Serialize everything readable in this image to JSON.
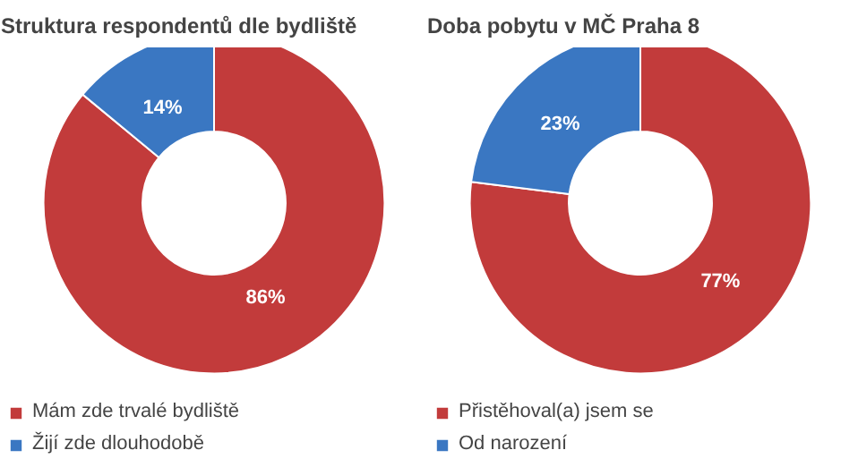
{
  "chart_data": [
    {
      "type": "donut",
      "title": "Struktura respondentů dle bydliště",
      "categories": [
        "Mám zde trvalé bydliště",
        "Žijí zde dlouhodobě"
      ],
      "values": [
        86,
        14
      ],
      "colors": [
        "#c23b3b",
        "#3a77c2"
      ],
      "value_labels": [
        "86%",
        "14%"
      ],
      "legend": "bottom"
    },
    {
      "type": "donut",
      "title": "Doba pobytu v MČ Praha 8",
      "categories": [
        "Přistěhoval(a) jsem se",
        "Od narození"
      ],
      "values": [
        77,
        23
      ],
      "colors": [
        "#c23b3b",
        "#3a77c2"
      ],
      "value_labels": [
        "77%",
        "23%"
      ],
      "legend": "bottom"
    }
  ]
}
